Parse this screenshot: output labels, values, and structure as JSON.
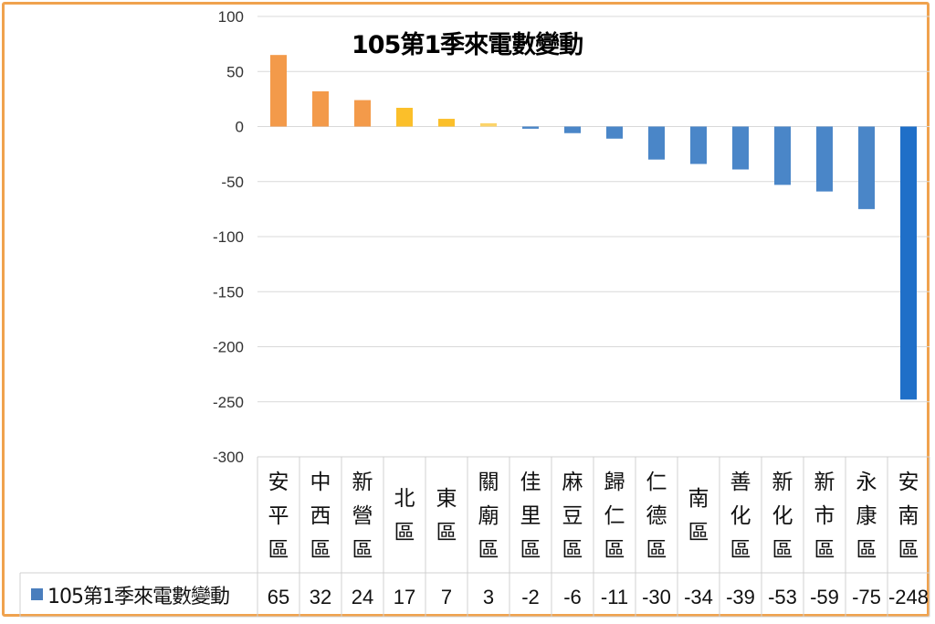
{
  "chart_data": {
    "type": "bar",
    "title": "105第1季來電數變動",
    "categories": [
      "安平區",
      "中西區",
      "新營區",
      "北區",
      "東區",
      "關廟區",
      "佳里區",
      "麻豆區",
      "歸仁區",
      "仁德區",
      "南區",
      "善化區",
      "新化區",
      "新市區",
      "永康區",
      "安南區"
    ],
    "series": [
      {
        "name": "105第1季來電數變動",
        "values": [
          65,
          32,
          24,
          17,
          7,
          3,
          -2,
          -6,
          -11,
          -30,
          -34,
          -39,
          -53,
          -59,
          -75,
          -248
        ]
      }
    ],
    "ylim": [
      -300,
      100
    ],
    "yticks": [
      100,
      50,
      0,
      -50,
      -100,
      -150,
      -200,
      -250,
      -300
    ],
    "grid": true,
    "data_table": true,
    "colors": {
      "positive_high": "#f39a4a",
      "positive_low": "#fbbf2a",
      "positive_faint": "#fcd46a",
      "negative": "#4a86c8",
      "negative_strong": "#1f6fc8",
      "legend": "#4a7ebd",
      "frame": "#f0a24e"
    }
  }
}
